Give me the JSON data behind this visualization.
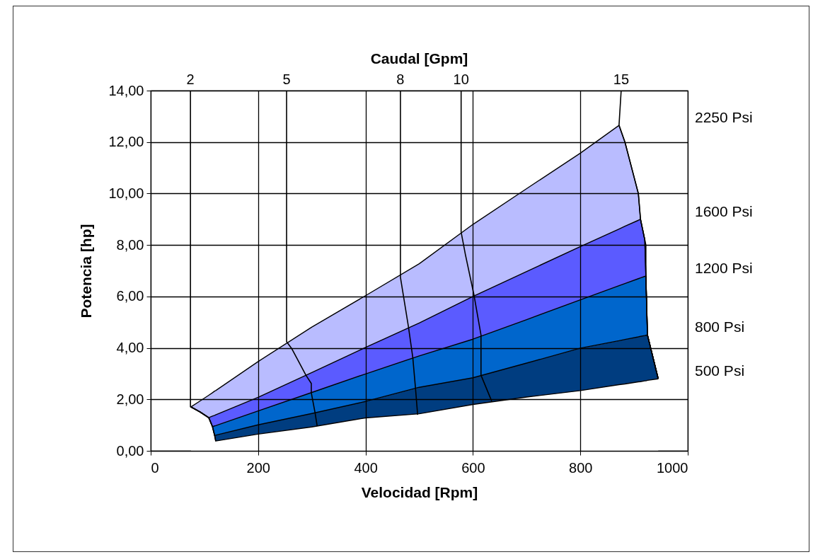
{
  "chart_data": {
    "type": "area",
    "stacked": true,
    "xlabel": "Velocidad [Rpm]",
    "ylabel": "Potencia [hp]",
    "x2label": "Caudal [Gpm]",
    "xlim": [
      0,
      1000
    ],
    "xticks": [
      0,
      200,
      400,
      600,
      800,
      1000
    ],
    "ylim": [
      0,
      14
    ],
    "yticks": [
      {
        "value": 0,
        "label": "0,00"
      },
      {
        "value": 2,
        "label": "2,00"
      },
      {
        "value": 4,
        "label": "4,00"
      },
      {
        "value": 6,
        "label": "6,00"
      },
      {
        "value": 8,
        "label": "8,00"
      },
      {
        "value": 10,
        "label": "10,00"
      },
      {
        "value": 12,
        "label": "12,00"
      },
      {
        "value": 14,
        "label": "14,00"
      }
    ],
    "grid": true,
    "x": [
      75,
      92,
      108,
      115,
      119,
      121,
      200,
      300,
      400,
      500,
      600,
      700,
      800,
      872,
      883,
      908,
      912,
      920,
      922,
      925,
      945
    ],
    "series": [
      {
        "color": "#ffffff",
        "values": [
          1.71,
          1.51,
          1.29,
          0.94,
          0.6,
          0.38,
          0.65,
          0.93,
          1.28,
          1.44,
          1.8,
          2.09,
          2.34,
          2.57,
          2.6,
          2.68,
          2.69,
          2.72,
          2.72,
          2.74,
          2.8
        ]
      },
      {
        "color": "#003d80",
        "values": [
          0,
          0,
          0,
          0,
          0,
          0.23,
          0.36,
          0.52,
          0.64,
          1.03,
          1.04,
          1.32,
          1.65,
          1.71,
          1.73,
          1.75,
          1.76,
          1.76,
          1.77,
          1.76,
          0
        ]
      },
      {
        "color": "#0066cc",
        "values": [
          0,
          0,
          0,
          0,
          0.37,
          0.37,
          0.54,
          0.82,
          1.07,
          1.22,
          1.5,
          1.69,
          1.88,
          2.14,
          2.17,
          2.26,
          2.27,
          2.3,
          2.3,
          0,
          0
        ]
      },
      {
        "color": "#5b5bff",
        "values": [
          0,
          0,
          0,
          0.41,
          0.41,
          0.42,
          0.53,
          0.77,
          1.03,
          1.28,
          1.66,
          1.87,
          2.07,
          2.2,
          2.23,
          2.27,
          2.28,
          1.42,
          0,
          0,
          0
        ]
      },
      {
        "color": "#b9bcff",
        "values": [
          0,
          0.43,
          0.87,
          0.91,
          0.94,
          0.94,
          1.39,
          1.77,
          2.01,
          2.3,
          2.8,
          3.22,
          3.63,
          4.03,
          3.27,
          1.04,
          0,
          0,
          0,
          0,
          0
        ]
      },
      {
        "type": "line",
        "name": "2",
        "color": "#000000",
        "x": [
          74,
          74,
          92,
          108,
          115,
          119,
          121
        ],
        "values": [
          14,
          1.71,
          1.51,
          1.29,
          0.94,
          0.6,
          0.38
        ]
      },
      {
        "type": "line",
        "name": "5",
        "color": "#000000",
        "x": [
          253,
          253,
          263,
          289,
          299,
          299,
          306,
          310
        ],
        "values": [
          14,
          4.24,
          3.96,
          2.94,
          2.62,
          2.26,
          1.48,
          0.96
        ]
      },
      {
        "type": "line",
        "name": "8",
        "color": "#000000",
        "x": [
          465,
          465,
          480,
          488,
          493,
          497
        ],
        "values": [
          14,
          6.74,
          4.81,
          3.63,
          2.44,
          1.4
        ]
      },
      {
        "type": "line",
        "name": "10",
        "color": "#000000",
        "x": [
          578,
          578,
          586,
          602,
          615,
          615,
          635
        ],
        "values": [
          14,
          8.5,
          7.62,
          6.05,
          4.5,
          2.94,
          1.93
        ]
      },
      {
        "type": "line",
        "name": "15",
        "color": "#000000",
        "x": [
          876,
          872,
          883,
          908,
          912,
          922,
          922,
          925,
          945
        ],
        "values": [
          14,
          12.65,
          12.0,
          10.0,
          9.0,
          8.0,
          6.8,
          4.5,
          2.8
        ]
      }
    ],
    "annotations": [
      "2250 Psi",
      "1600 Psi",
      "1200 Psi",
      "800 Psi",
      "500 Psi"
    ]
  }
}
